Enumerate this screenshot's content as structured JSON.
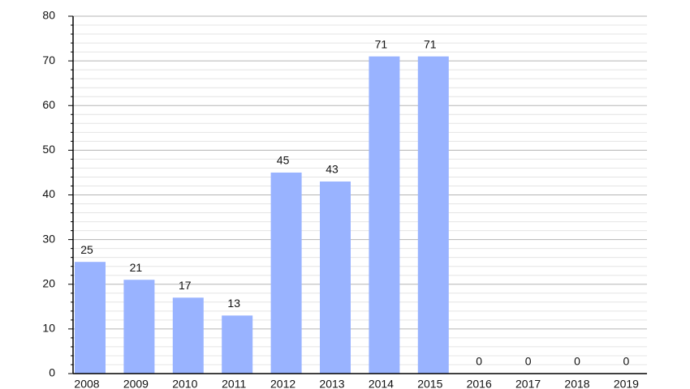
{
  "chart_data": {
    "type": "bar",
    "categories": [
      "2008",
      "2009",
      "2010",
      "2011",
      "2012",
      "2013",
      "2014",
      "2015",
      "2016",
      "2017",
      "2018",
      "2019"
    ],
    "values": [
      25,
      21,
      17,
      13,
      45,
      43,
      71,
      71,
      0,
      0,
      0,
      0
    ],
    "color": "#99b3ff",
    "ylim": [
      0,
      80
    ],
    "yticks": [
      0,
      10,
      20,
      30,
      40,
      50,
      60,
      70,
      80
    ],
    "yminorticks": [
      2,
      4,
      6,
      8,
      12,
      14,
      16,
      18,
      22,
      24,
      26,
      28,
      32,
      34,
      36,
      38,
      42,
      44,
      46,
      48,
      52,
      54,
      56,
      58,
      62,
      64,
      66,
      68,
      72,
      74,
      76,
      78
    ],
    "grid": true
  }
}
